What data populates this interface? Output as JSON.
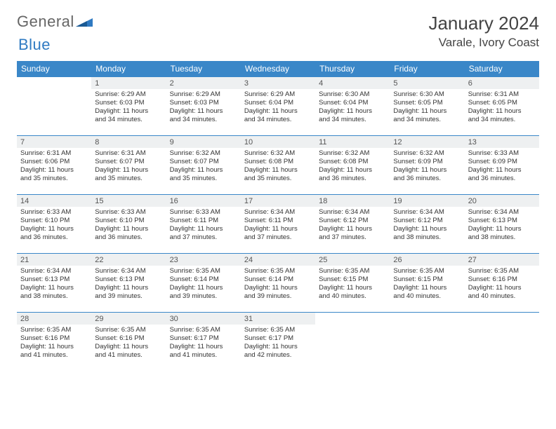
{
  "logo": {
    "word1": "General",
    "word2": "Blue"
  },
  "title": "January 2024",
  "location": "Varale, Ivory Coast",
  "colors": {
    "header_bg": "#3a87c8",
    "header_fg": "#ffffff",
    "date_bg": "#eef0f1",
    "row_border": "#3a87c8",
    "logo_grey": "#666666",
    "logo_blue": "#2f7ac2"
  },
  "daynames": [
    "Sunday",
    "Monday",
    "Tuesday",
    "Wednesday",
    "Thursday",
    "Friday",
    "Saturday"
  ],
  "weeks": [
    [
      null,
      {
        "n": "1",
        "sr": "6:29 AM",
        "ss": "6:03 PM",
        "dh": "11",
        "dm": "34"
      },
      {
        "n": "2",
        "sr": "6:29 AM",
        "ss": "6:03 PM",
        "dh": "11",
        "dm": "34"
      },
      {
        "n": "3",
        "sr": "6:29 AM",
        "ss": "6:04 PM",
        "dh": "11",
        "dm": "34"
      },
      {
        "n": "4",
        "sr": "6:30 AM",
        "ss": "6:04 PM",
        "dh": "11",
        "dm": "34"
      },
      {
        "n": "5",
        "sr": "6:30 AM",
        "ss": "6:05 PM",
        "dh": "11",
        "dm": "34"
      },
      {
        "n": "6",
        "sr": "6:31 AM",
        "ss": "6:05 PM",
        "dh": "11",
        "dm": "34"
      }
    ],
    [
      {
        "n": "7",
        "sr": "6:31 AM",
        "ss": "6:06 PM",
        "dh": "11",
        "dm": "35"
      },
      {
        "n": "8",
        "sr": "6:31 AM",
        "ss": "6:07 PM",
        "dh": "11",
        "dm": "35"
      },
      {
        "n": "9",
        "sr": "6:32 AM",
        "ss": "6:07 PM",
        "dh": "11",
        "dm": "35"
      },
      {
        "n": "10",
        "sr": "6:32 AM",
        "ss": "6:08 PM",
        "dh": "11",
        "dm": "35"
      },
      {
        "n": "11",
        "sr": "6:32 AM",
        "ss": "6:08 PM",
        "dh": "11",
        "dm": "36"
      },
      {
        "n": "12",
        "sr": "6:32 AM",
        "ss": "6:09 PM",
        "dh": "11",
        "dm": "36"
      },
      {
        "n": "13",
        "sr": "6:33 AM",
        "ss": "6:09 PM",
        "dh": "11",
        "dm": "36"
      }
    ],
    [
      {
        "n": "14",
        "sr": "6:33 AM",
        "ss": "6:10 PM",
        "dh": "11",
        "dm": "36"
      },
      {
        "n": "15",
        "sr": "6:33 AM",
        "ss": "6:10 PM",
        "dh": "11",
        "dm": "36"
      },
      {
        "n": "16",
        "sr": "6:33 AM",
        "ss": "6:11 PM",
        "dh": "11",
        "dm": "37"
      },
      {
        "n": "17",
        "sr": "6:34 AM",
        "ss": "6:11 PM",
        "dh": "11",
        "dm": "37"
      },
      {
        "n": "18",
        "sr": "6:34 AM",
        "ss": "6:12 PM",
        "dh": "11",
        "dm": "37"
      },
      {
        "n": "19",
        "sr": "6:34 AM",
        "ss": "6:12 PM",
        "dh": "11",
        "dm": "38"
      },
      {
        "n": "20",
        "sr": "6:34 AM",
        "ss": "6:13 PM",
        "dh": "11",
        "dm": "38"
      }
    ],
    [
      {
        "n": "21",
        "sr": "6:34 AM",
        "ss": "6:13 PM",
        "dh": "11",
        "dm": "38"
      },
      {
        "n": "22",
        "sr": "6:34 AM",
        "ss": "6:13 PM",
        "dh": "11",
        "dm": "39"
      },
      {
        "n": "23",
        "sr": "6:35 AM",
        "ss": "6:14 PM",
        "dh": "11",
        "dm": "39"
      },
      {
        "n": "24",
        "sr": "6:35 AM",
        "ss": "6:14 PM",
        "dh": "11",
        "dm": "39"
      },
      {
        "n": "25",
        "sr": "6:35 AM",
        "ss": "6:15 PM",
        "dh": "11",
        "dm": "40"
      },
      {
        "n": "26",
        "sr": "6:35 AM",
        "ss": "6:15 PM",
        "dh": "11",
        "dm": "40"
      },
      {
        "n": "27",
        "sr": "6:35 AM",
        "ss": "6:16 PM",
        "dh": "11",
        "dm": "40"
      }
    ],
    [
      {
        "n": "28",
        "sr": "6:35 AM",
        "ss": "6:16 PM",
        "dh": "11",
        "dm": "41"
      },
      {
        "n": "29",
        "sr": "6:35 AM",
        "ss": "6:16 PM",
        "dh": "11",
        "dm": "41"
      },
      {
        "n": "30",
        "sr": "6:35 AM",
        "ss": "6:17 PM",
        "dh": "11",
        "dm": "41"
      },
      {
        "n": "31",
        "sr": "6:35 AM",
        "ss": "6:17 PM",
        "dh": "11",
        "dm": "42"
      },
      null,
      null,
      null
    ]
  ],
  "labels": {
    "sunrise": "Sunrise: ",
    "sunset": "Sunset: ",
    "daylight1": "Daylight: ",
    "hours_word": " hours",
    "and_word": "and ",
    "minutes_word": " minutes."
  }
}
